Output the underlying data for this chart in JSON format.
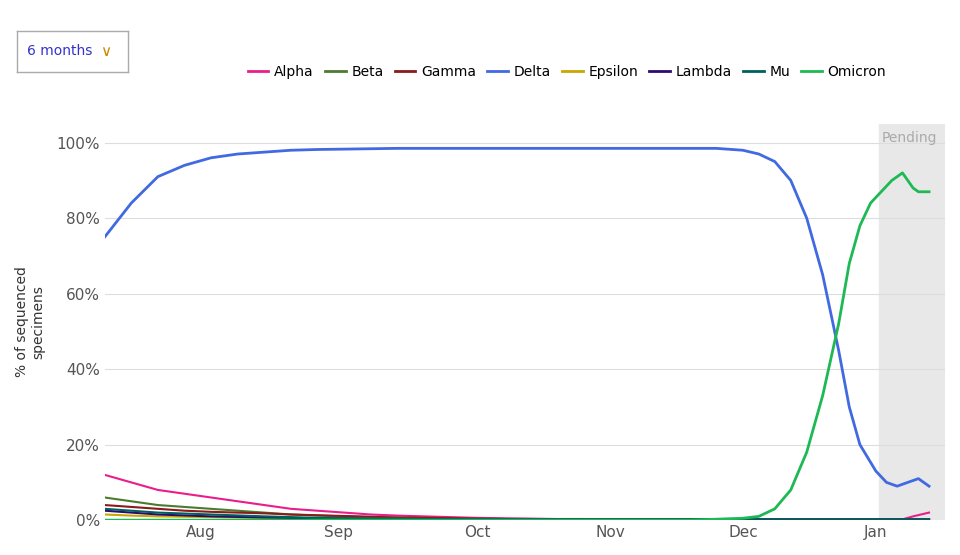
{
  "title": "",
  "ylabel": "% of sequenced\nspecimens",
  "background_color": "#ffffff",
  "pending_color": "#e8e8e8",
  "pending_label": "Pending",
  "button_label": "6 months",
  "legend_entries": [
    "Alpha",
    "Beta",
    "Gamma",
    "Delta",
    "Epsilon",
    "Lambda",
    "Mu",
    "Omicron"
  ],
  "legend_colors": [
    "#e91e8c",
    "#4a7c2f",
    "#8b1a1a",
    "#4169e1",
    "#c8a800",
    "#2e0a6e",
    "#006060",
    "#1db954"
  ],
  "month_labels": [
    "Aug",
    "Sep",
    "Oct",
    "Nov",
    "Dec",
    "Jan"
  ],
  "month_positions": [
    1.8,
    4.4,
    7.0,
    9.5,
    12.0,
    14.5
  ],
  "ytick_vals": [
    0,
    20,
    40,
    60,
    80,
    100
  ],
  "ytick_labels": [
    "0%",
    "20%",
    "40%",
    "60%",
    "80%",
    "100%"
  ],
  "xmin": 0,
  "xmax": 15.8,
  "ymin": 0,
  "ymax": 105,
  "pending_x_start": 14.55,
  "pending_x_end": 15.8,
  "series": {
    "Alpha": {
      "x": [
        0,
        0.5,
        1,
        1.5,
        2,
        2.5,
        3,
        3.5,
        4,
        4.5,
        5,
        5.5,
        6,
        6.5,
        7,
        7.5,
        8,
        8.5,
        9,
        9.5,
        10,
        10.5,
        11,
        11.5,
        12,
        12.5,
        13,
        13.5,
        14,
        14.5,
        14.8,
        15,
        15.2,
        15.5
      ],
      "y": [
        12,
        10,
        8,
        7,
        6,
        5,
        4,
        3,
        2.5,
        2,
        1.5,
        1.2,
        1,
        0.8,
        0.6,
        0.5,
        0.4,
        0.3,
        0.3,
        0.2,
        0.2,
        0.2,
        0.2,
        0.2,
        0.2,
        0.2,
        0.2,
        0.2,
        0.2,
        0.2,
        0.2,
        0.2,
        1.0,
        2.0
      ],
      "color": "#e91e8c",
      "lw": 1.5
    },
    "Beta": {
      "x": [
        0,
        0.5,
        1,
        1.5,
        2,
        2.5,
        3,
        3.5,
        4,
        4.5,
        5,
        5.5,
        6,
        6.5,
        7,
        7.5,
        8,
        8.5,
        9,
        9.5,
        10,
        10.5,
        11,
        11.5,
        12,
        12.5,
        13,
        13.5,
        14,
        14.5,
        15,
        15.5
      ],
      "y": [
        6,
        5,
        4,
        3.5,
        3,
        2.5,
        2,
        1.5,
        1.2,
        1,
        0.8,
        0.6,
        0.5,
        0.4,
        0.3,
        0.3,
        0.2,
        0.2,
        0.2,
        0.2,
        0.2,
        0.2,
        0.2,
        0.2,
        0.2,
        0.2,
        0.2,
        0.2,
        0.2,
        0.2,
        0.2,
        0.2
      ],
      "color": "#4a7c2f",
      "lw": 1.5
    },
    "Gamma": {
      "x": [
        0,
        0.5,
        1,
        1.5,
        2,
        2.5,
        3,
        3.5,
        4,
        4.5,
        5,
        5.5,
        6,
        6.5,
        7,
        7.5,
        8,
        8.5,
        9,
        9.5,
        10,
        10.5,
        11,
        11.5,
        12,
        12.5,
        13,
        13.5,
        14,
        14.5,
        15,
        15.5
      ],
      "y": [
        4,
        3.5,
        3,
        2.5,
        2.2,
        2,
        1.8,
        1.5,
        1.3,
        1.1,
        0.9,
        0.7,
        0.6,
        0.5,
        0.4,
        0.3,
        0.3,
        0.2,
        0.2,
        0.2,
        0.2,
        0.2,
        0.2,
        0.2,
        0.2,
        0.2,
        0.2,
        0.2,
        0.2,
        0.2,
        0.2,
        0.2
      ],
      "color": "#8b1a1a",
      "lw": 1.5
    },
    "Delta": {
      "x": [
        0,
        0.5,
        1,
        1.5,
        2,
        2.5,
        3,
        3.5,
        4,
        4.5,
        5,
        5.5,
        6,
        6.5,
        7,
        7.5,
        8,
        8.5,
        9,
        9.5,
        10,
        10.5,
        11,
        11.5,
        12,
        12.3,
        12.6,
        12.9,
        13.2,
        13.5,
        13.8,
        14.0,
        14.2,
        14.5,
        14.7,
        14.9,
        15.1,
        15.2,
        15.3,
        15.5
      ],
      "y": [
        75,
        84,
        91,
        94,
        96,
        97,
        97.5,
        98,
        98.2,
        98.3,
        98.4,
        98.5,
        98.5,
        98.5,
        98.5,
        98.5,
        98.5,
        98.5,
        98.5,
        98.5,
        98.5,
        98.5,
        98.5,
        98.5,
        98,
        97,
        95,
        90,
        80,
        65,
        45,
        30,
        20,
        13,
        10,
        9,
        10,
        10.5,
        11,
        9
      ],
      "color": "#4169e1",
      "lw": 2.0
    },
    "Epsilon": {
      "x": [
        0,
        0.5,
        1,
        2,
        3,
        4,
        5,
        6,
        7,
        8,
        9,
        10,
        11,
        12,
        13,
        14,
        15,
        15.5
      ],
      "y": [
        1.5,
        1.2,
        1,
        0.8,
        0.6,
        0.5,
        0.4,
        0.3,
        0.2,
        0.2,
        0.2,
        0.2,
        0.2,
        0.2,
        0.2,
        0.2,
        0.2,
        0.2
      ],
      "color": "#c8a800",
      "lw": 1.5
    },
    "Lambda": {
      "x": [
        0,
        0.5,
        1,
        2,
        3,
        4,
        5,
        6,
        7,
        8,
        9,
        10,
        11,
        12,
        13,
        14,
        15,
        15.5
      ],
      "y": [
        2.5,
        2,
        1.5,
        1,
        0.7,
        0.5,
        0.4,
        0.3,
        0.2,
        0.2,
        0.2,
        0.2,
        0.2,
        0.2,
        0.2,
        0.2,
        0.2,
        0.2
      ],
      "color": "#2e0a6e",
      "lw": 1.5
    },
    "Mu": {
      "x": [
        0,
        0.5,
        1,
        2,
        3,
        4,
        5,
        6,
        7,
        8,
        9,
        10,
        11,
        12,
        13,
        14,
        15,
        15.5
      ],
      "y": [
        3,
        2.5,
        2,
        1.5,
        1,
        0.6,
        0.4,
        0.3,
        0.2,
        0.2,
        0.2,
        0.2,
        0.2,
        0.2,
        0.2,
        0.2,
        0.2,
        0.2
      ],
      "color": "#006060",
      "lw": 1.5
    },
    "Omicron": {
      "x": [
        0,
        1,
        2,
        3,
        4,
        5,
        6,
        7,
        8,
        9,
        10,
        11,
        12,
        12.3,
        12.6,
        12.9,
        13.2,
        13.5,
        13.8,
        14.0,
        14.2,
        14.4,
        14.6,
        14.8,
        14.9,
        15.0,
        15.1,
        15.2,
        15.3,
        15.5
      ],
      "y": [
        0,
        0,
        0,
        0,
        0,
        0,
        0,
        0,
        0,
        0,
        0,
        0,
        0.5,
        1,
        3,
        8,
        18,
        33,
        52,
        68,
        78,
        84,
        87,
        90,
        91,
        92,
        90,
        88,
        87,
        87
      ],
      "color": "#1db954",
      "lw": 2.0
    }
  }
}
